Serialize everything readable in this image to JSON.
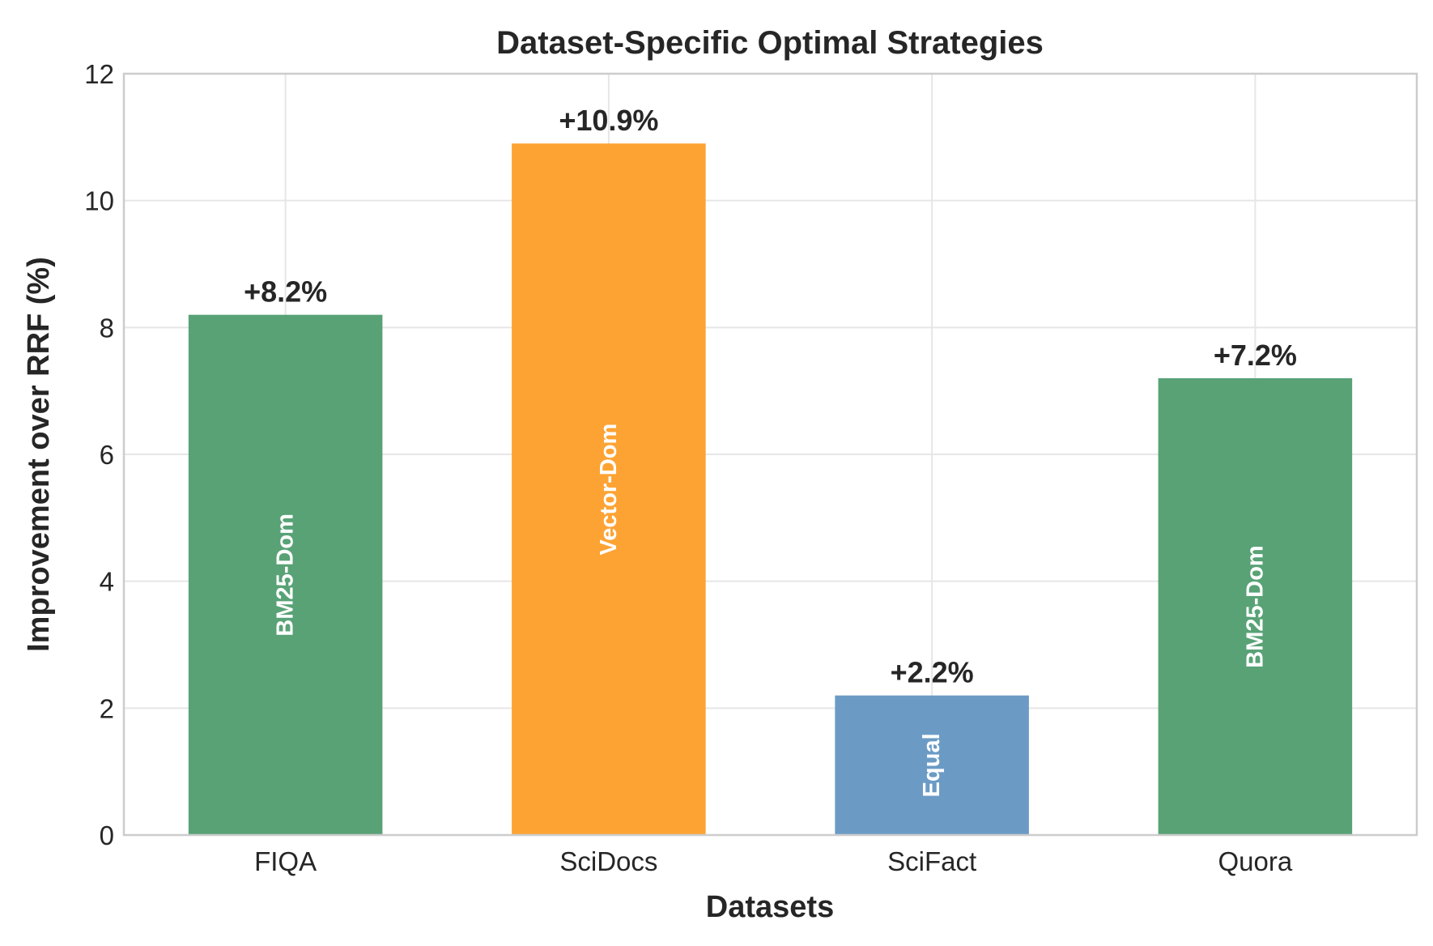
{
  "chart_data": {
    "type": "bar",
    "title": "Dataset-Specific Optimal Strategies",
    "xlabel": "Datasets",
    "ylabel": "Improvement over RRF (%)",
    "ylim": [
      0,
      12
    ],
    "yticks": [
      0,
      2,
      4,
      6,
      8,
      10,
      12
    ],
    "grid": true,
    "categories": [
      "FIQA",
      "SciDocs",
      "SciFact",
      "Quora"
    ],
    "values": [
      8.2,
      10.9,
      2.2,
      7.2
    ],
    "value_labels": [
      "+8.2%",
      "+10.9%",
      "+2.2%",
      "+7.2%"
    ],
    "bar_labels": [
      "BM25-Dom",
      "Vector-Dom",
      "Equal",
      "BM25-Dom"
    ],
    "colors": [
      "#58a276",
      "#fda334",
      "#6b9bc5",
      "#58a276"
    ]
  }
}
